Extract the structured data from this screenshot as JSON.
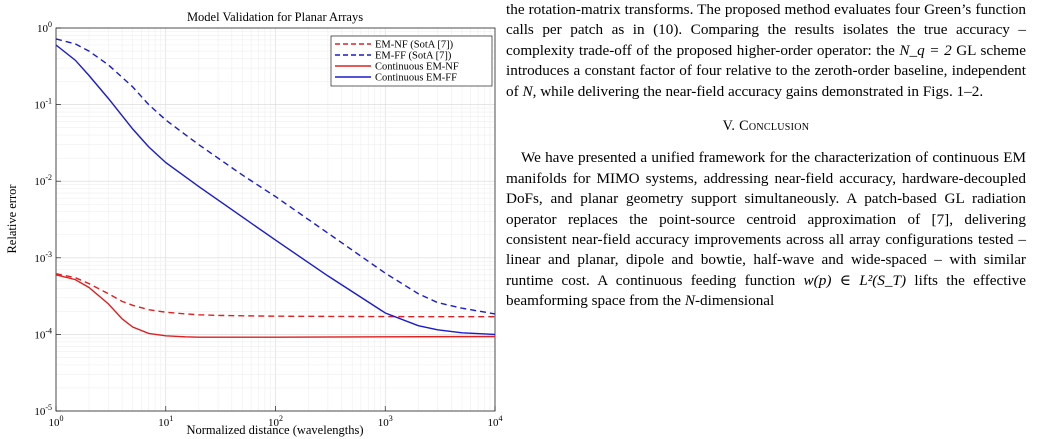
{
  "figure": {
    "title": "Model Validation for Planar Arrays",
    "xlabel": "Normalized distance (wavelengths)",
    "ylabel": "Relative error"
  },
  "chart_data": {
    "type": "line",
    "title": "Model Validation for Planar Arrays",
    "xlabel": "Normalized distance (wavelengths)",
    "ylabel": "Relative error",
    "xscale": "log",
    "yscale": "log",
    "xlim": [
      1,
      10000
    ],
    "ylim": [
      1e-05,
      1
    ],
    "grid": true,
    "legend_position": "top-right",
    "x_ticks": [
      "10^0",
      "10^1",
      "10^2",
      "10^3",
      "10^4"
    ],
    "y_ticks": [
      "10^-5",
      "10^-4",
      "10^-3",
      "10^-2",
      "10^-1",
      "10^0"
    ],
    "series": [
      {
        "name": "EM-NF (SotA [7])",
        "color": "#e02020",
        "style": "dashed",
        "x": [
          1,
          1.5,
          2,
          3,
          4,
          5,
          7,
          10,
          15,
          20,
          30,
          50,
          100,
          300,
          1000,
          3000,
          10000
        ],
        "y": [
          0.00062,
          0.00055,
          0.00046,
          0.00034,
          0.00027,
          0.00024,
          0.00021,
          0.000195,
          0.000185,
          0.00018,
          0.000177,
          0.000175,
          0.000173,
          0.000172,
          0.000171,
          0.00017,
          0.00017
        ]
      },
      {
        "name": "EM-FF (SotA [7])",
        "color": "#1a1ad0",
        "style": "dashed",
        "x": [
          1,
          1.5,
          2,
          3,
          5,
          7,
          10,
          20,
          50,
          100,
          300,
          1000,
          2000,
          3000,
          5000,
          10000
        ],
        "y": [
          0.72,
          0.62,
          0.5,
          0.33,
          0.17,
          0.1,
          0.063,
          0.03,
          0.012,
          0.0063,
          0.0021,
          0.00063,
          0.00034,
          0.00026,
          0.00022,
          0.000185
        ]
      },
      {
        "name": "Continuous EM-NF",
        "color": "#e02020",
        "style": "solid",
        "x": [
          1,
          1.5,
          2,
          3,
          4,
          5,
          7,
          10,
          15,
          20,
          50,
          100,
          1000,
          10000
        ],
        "y": [
          0.0006,
          0.00052,
          0.00041,
          0.00025,
          0.00016,
          0.000125,
          0.000103,
          9.6e-05,
          9.3e-05,
          9.2e-05,
          9.2e-05,
          9.2e-05,
          9.3e-05,
          9.4e-05
        ]
      },
      {
        "name": "Continuous EM-FF",
        "color": "#1a1ad0",
        "style": "solid",
        "x": [
          1,
          1.5,
          2,
          3,
          5,
          7,
          10,
          20,
          50,
          100,
          300,
          1000,
          2000,
          3000,
          5000,
          10000
        ],
        "y": [
          0.6,
          0.38,
          0.24,
          0.12,
          0.048,
          0.028,
          0.0175,
          0.0085,
          0.0034,
          0.0017,
          0.00058,
          0.00019,
          0.00013,
          0.000115,
          0.000105,
          0.0001
        ]
      }
    ]
  },
  "text": {
    "p1": "the rotation-matrix transforms. The proposed method evaluates four Green’s function calls per patch as in (10). Comparing the results isolates the true accuracy – complexity trade-off of the proposed higher-order operator: the",
    "p1_math": "N_q = 2",
    "p1b": "GL scheme introduces a constant factor of four relative to the zeroth-order baseline, independent of",
    "p1_n": "N",
    "p1c": ", while delivering the near-field accuracy gains demonstrated in Figs. 1–2.",
    "heading_num": "V.",
    "heading": "Conclusion",
    "p2": "We have presented a unified framework for the characterization of continuous EM manifolds for MIMO systems, addressing near-field accuracy, hardware-decoupled DoFs, and planar geometry support simultaneously. A patch-based GL radiation operator replaces the point-source centroid approximation of [7], delivering consistent near-field accuracy improvements across all array configurations tested – linear and planar, dipole and bowtie, half-wave and wide-spaced – with similar runtime cost. A continuous feeding function",
    "p2_math": "w(p) ∈ L²(S_T)",
    "p2b": "lifts the effective beamforming space from the",
    "p2_n": "N",
    "p2c": "-dimensional"
  }
}
